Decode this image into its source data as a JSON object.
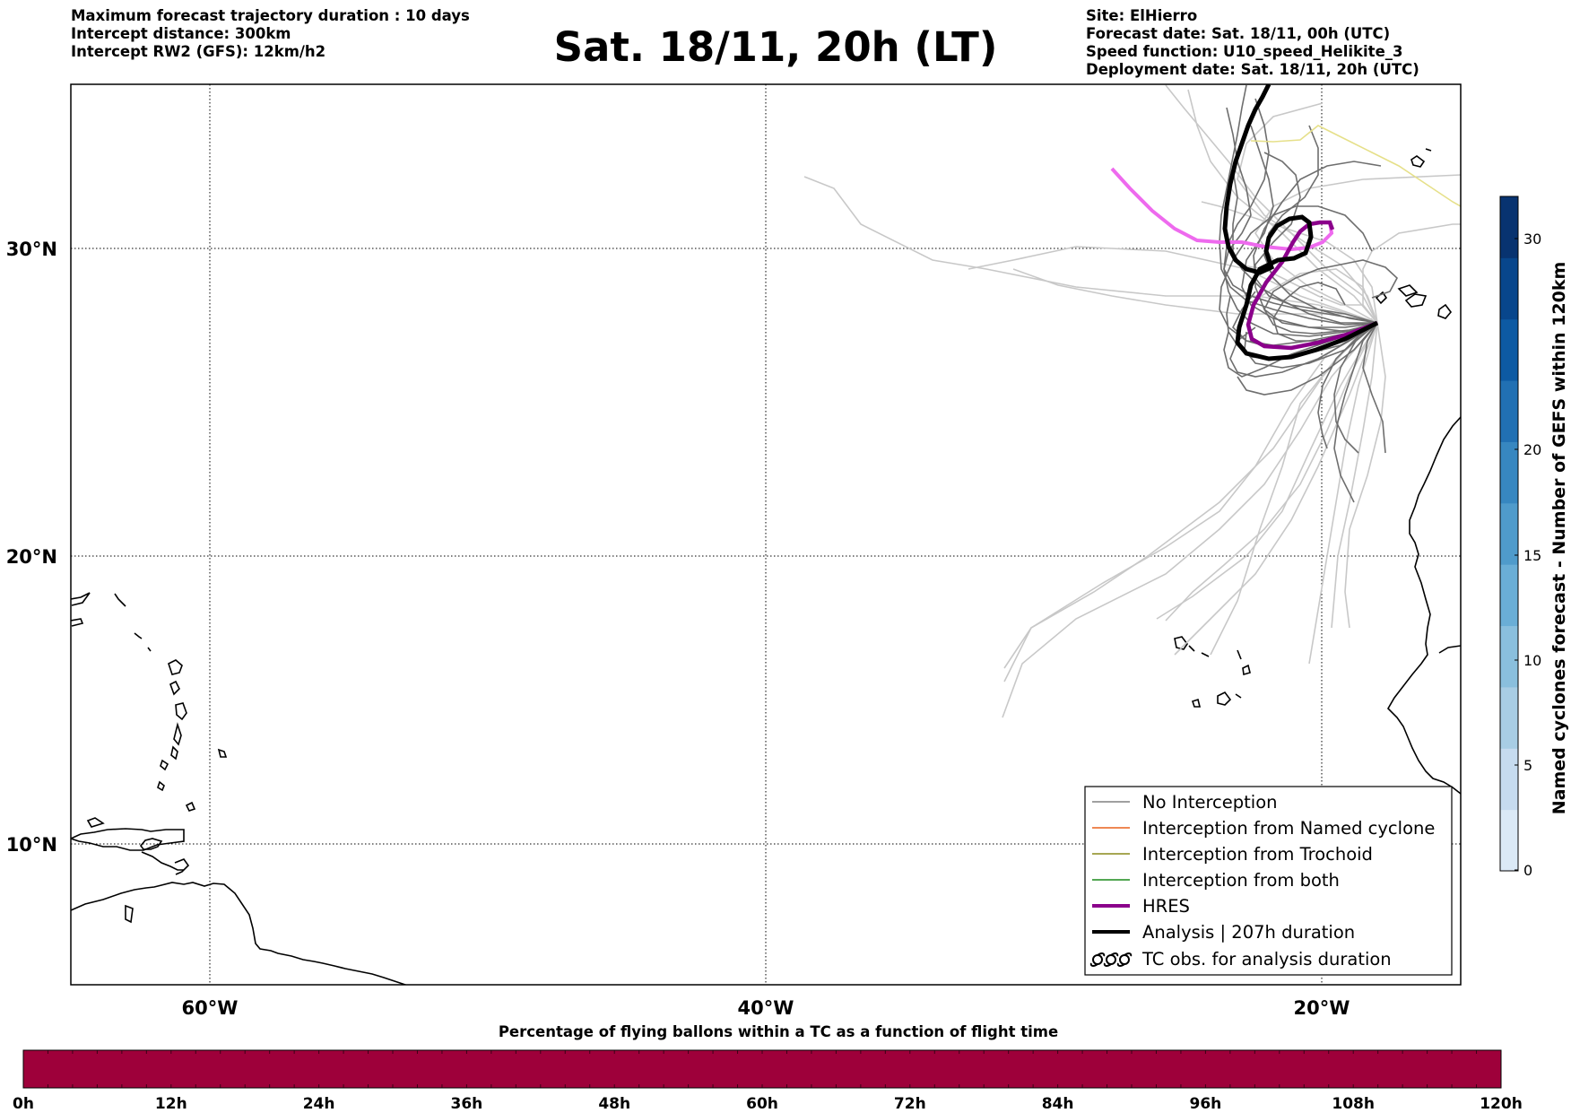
{
  "header": {
    "left_lines": [
      "Maximum forecast trajectory duration : 10 days",
      "Intercept distance: 300km",
      "Intercept RW2 (GFS):  12km/h2"
    ],
    "title": "Sat. 18/11, 20h (LT)",
    "right_lines": [
      "Site: ElHierro",
      "Forecast date: Sat. 18/11, 00h (UTC)",
      "Speed function: U10_speed_Helikite_3",
      "Deployment date: Sat. 18/11, 20h (UTC)"
    ]
  },
  "map": {
    "lon_labels": [
      "60°W",
      "40°W",
      "20°W"
    ],
    "lat_labels": [
      "30°N",
      "20°N",
      "10°N"
    ],
    "gridline_style": "dotted",
    "colors": {
      "ensemble_dark": "#6e6e6e",
      "ensemble_light": "#c8c8c8",
      "hres": "#8b008b",
      "hres_light": "#ee6aee",
      "analysis": "#000000",
      "yellow_track": "#e6e08a"
    }
  },
  "legend": {
    "items": [
      {
        "label": "No Interception",
        "color": "#808080",
        "style": "thin-line"
      },
      {
        "label": "Interception from Named cyclone",
        "color": "#e8601c",
        "style": "thin-line"
      },
      {
        "label": "Interception from Trochoid",
        "color": "#8a8a1a",
        "style": "thin-line"
      },
      {
        "label": "Interception from both",
        "color": "#1a8a1a",
        "style": "thin-line"
      },
      {
        "label": "HRES",
        "color": "#8b008b",
        "style": "thick-line"
      },
      {
        "label": "Analysis | 207h duration",
        "color": "#000000",
        "style": "thick-line"
      },
      {
        "label": "TC obs. for analysis duration",
        "color": "#000000",
        "style": "tc-symbols",
        "icon": "tc-symbol-icon"
      }
    ]
  },
  "colorbar_right": {
    "title": "Named cyclones forecast - Number of GEFS within 120km",
    "ticks": [
      "0",
      "5",
      "10",
      "15",
      "20",
      "30"
    ],
    "colors": [
      "#dbe9f6",
      "#c6dbef",
      "#a8cde4",
      "#8abfdd",
      "#6aaed6",
      "#4f9bcb",
      "#3787c0",
      "#2170b3",
      "#0d5aa3",
      "#08468c",
      "#083370"
    ]
  },
  "colorbar_bottom": {
    "title": "Percentage of flying ballons within a TC as a function of flight time",
    "ticks": [
      "0h",
      "12h",
      "24h",
      "36h",
      "48h",
      "60h",
      "72h",
      "84h",
      "96h",
      "108h",
      "120h"
    ],
    "fill_color": "#9e003a"
  }
}
